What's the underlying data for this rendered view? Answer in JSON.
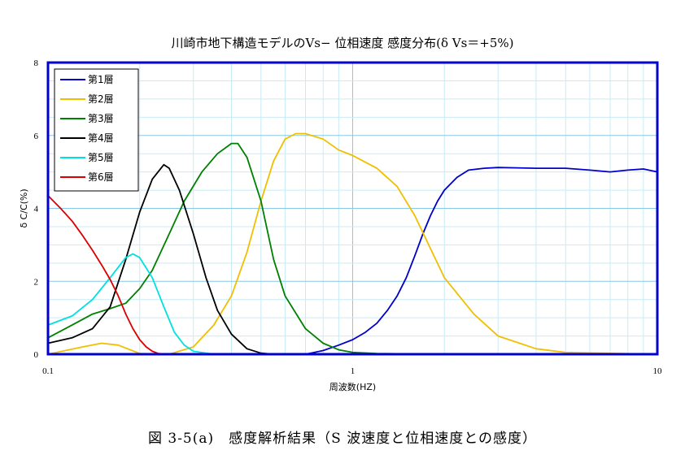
{
  "chart_data": {
    "type": "line",
    "title": "川崎市地下構造モデルのVs− 位相速度 感度分布(δ Vs＝+5%)",
    "xlabel": "周波数(HZ)",
    "ylabel": "δ C/C(%)",
    "x_scale": "log",
    "xlim": [
      0.1,
      10
    ],
    "ylim": [
      0,
      8
    ],
    "x_ticks": [
      {
        "value": 0.1,
        "label": "0.1"
      },
      {
        "value": 1,
        "label": "1"
      },
      {
        "value": 10,
        "label": "10"
      }
    ],
    "y_ticks": [
      {
        "value": 0,
        "label": "0"
      },
      {
        "value": 2,
        "label": "2"
      },
      {
        "value": 4,
        "label": "4"
      },
      {
        "value": 6,
        "label": "6"
      },
      {
        "value": 8,
        "label": "8"
      }
    ],
    "grid": true,
    "legend_position": "top-left",
    "series": [
      {
        "name": "第1層",
        "color": "#0000cc",
        "x": [
          0.1,
          0.5,
          0.7,
          0.8,
          0.9,
          1.0,
          1.1,
          1.2,
          1.3,
          1.4,
          1.5,
          1.6,
          1.7,
          1.8,
          1.9,
          2.0,
          2.2,
          2.4,
          2.7,
          3.0,
          4.0,
          5.0,
          6.0,
          7.0,
          8.0,
          9.0,
          10.0
        ],
        "y": [
          0,
          0,
          0,
          0.1,
          0.25,
          0.4,
          0.6,
          0.85,
          1.2,
          1.6,
          2.1,
          2.7,
          3.3,
          3.8,
          4.2,
          4.5,
          4.85,
          5.05,
          5.1,
          5.12,
          5.1,
          5.1,
          5.05,
          5.0,
          5.05,
          5.08,
          5.0
        ]
      },
      {
        "name": "第2層",
        "color": "#f0c000",
        "x": [
          0.1,
          0.13,
          0.15,
          0.17,
          0.2,
          0.25,
          0.3,
          0.35,
          0.4,
          0.45,
          0.5,
          0.55,
          0.6,
          0.65,
          0.7,
          0.8,
          0.9,
          1.0,
          1.2,
          1.4,
          1.6,
          1.8,
          2.0,
          2.5,
          3.0,
          4.0,
          5.0,
          10.0
        ],
        "y": [
          0,
          0.2,
          0.3,
          0.25,
          0.02,
          0,
          0.2,
          0.8,
          1.6,
          2.8,
          4.2,
          5.3,
          5.9,
          6.05,
          6.05,
          5.9,
          5.6,
          5.45,
          5.1,
          4.6,
          3.8,
          2.9,
          2.1,
          1.1,
          0.5,
          0.15,
          0.05,
          0
        ]
      },
      {
        "name": "第3層",
        "color": "#008000",
        "x": [
          0.1,
          0.12,
          0.14,
          0.16,
          0.18,
          0.2,
          0.22,
          0.25,
          0.28,
          0.32,
          0.36,
          0.4,
          0.42,
          0.45,
          0.5,
          0.55,
          0.6,
          0.7,
          0.8,
          0.9,
          1.0,
          1.2,
          2.0,
          10.0
        ],
        "y": [
          0.45,
          0.8,
          1.1,
          1.25,
          1.4,
          1.8,
          2.3,
          3.3,
          4.2,
          5.0,
          5.5,
          5.78,
          5.78,
          5.4,
          4.2,
          2.6,
          1.6,
          0.7,
          0.3,
          0.12,
          0.05,
          0.02,
          0,
          0
        ]
      },
      {
        "name": "第4層",
        "color": "#000000",
        "x": [
          0.1,
          0.12,
          0.14,
          0.16,
          0.18,
          0.2,
          0.22,
          0.24,
          0.25,
          0.27,
          0.3,
          0.33,
          0.36,
          0.4,
          0.45,
          0.5,
          0.55,
          0.6,
          1.0,
          10.0
        ],
        "y": [
          0.3,
          0.45,
          0.7,
          1.3,
          2.6,
          3.9,
          4.8,
          5.2,
          5.1,
          4.5,
          3.3,
          2.1,
          1.2,
          0.55,
          0.15,
          0.03,
          0,
          0,
          0,
          0
        ]
      },
      {
        "name": "第5層",
        "color": "#00e0e0",
        "x": [
          0.1,
          0.12,
          0.14,
          0.16,
          0.18,
          0.19,
          0.2,
          0.22,
          0.24,
          0.26,
          0.28,
          0.3,
          0.35,
          1.0,
          10.0
        ],
        "y": [
          0.8,
          1.05,
          1.5,
          2.1,
          2.65,
          2.75,
          2.65,
          2.1,
          1.3,
          0.6,
          0.25,
          0.08,
          0,
          0,
          0
        ]
      },
      {
        "name": "第6層",
        "color": "#dd0000",
        "x": [
          0.1,
          0.11,
          0.12,
          0.13,
          0.14,
          0.15,
          0.16,
          0.17,
          0.18,
          0.19,
          0.2,
          0.21,
          0.22,
          0.23,
          0.25,
          0.3,
          1.0,
          10.0
        ],
        "y": [
          4.35,
          4.0,
          3.65,
          3.25,
          2.85,
          2.45,
          2.05,
          1.6,
          1.1,
          0.7,
          0.4,
          0.2,
          0.08,
          0.02,
          0,
          0,
          0,
          0
        ]
      }
    ]
  },
  "caption": "図 3-5(a)　感度解析結果（S 波速度と位相速度との感度）"
}
